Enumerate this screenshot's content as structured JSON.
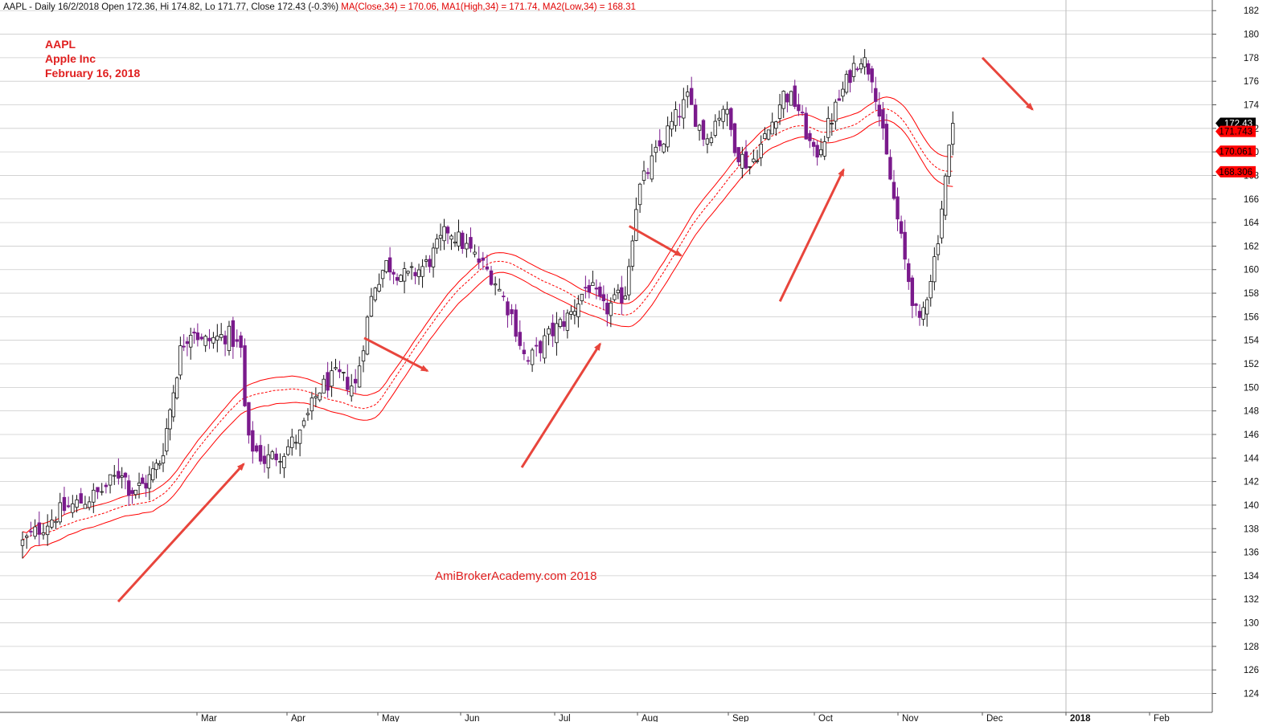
{
  "header": {
    "prefix": "AAPL - Daily 16/2/2018 Open 172.36, Hi 174.82, Lo 171.77, Close 172.43 (-0.3%)",
    "ma1": "MA(Close,34) = 170.06,",
    "ma2": "MA1(High,34) = 171.74,",
    "ma3": "MA2(Low,34) = 168.31"
  },
  "annotation": {
    "ticker": "AAPL",
    "company": "Apple Inc",
    "date": "February 16, 2018",
    "watermark": "AmiBrokerAcademy.com  2018"
  },
  "colors": {
    "up": "#111111",
    "down": "#7a1a8c",
    "ma": "#ff0000",
    "arrow": "#e8453c",
    "grid": "#cccccc"
  },
  "chart_data": {
    "type": "candlestick",
    "ylim": [
      123,
      183
    ],
    "y_ticks": [
      124,
      126,
      128,
      130,
      132,
      134,
      136,
      138,
      140,
      142,
      144,
      146,
      148,
      150,
      152,
      154,
      156,
      158,
      160,
      162,
      164,
      166,
      168,
      170,
      172,
      174,
      176,
      178,
      180,
      182
    ],
    "x_labels": [
      {
        "label": "Mar",
        "month": 2
      },
      {
        "label": "Apr",
        "month": 3
      },
      {
        "label": "May",
        "month": 4
      },
      {
        "label": "Jun",
        "month": 5
      },
      {
        "label": "Jul",
        "month": 6
      },
      {
        "label": "Aug",
        "month": 7
      },
      {
        "label": "Sep",
        "month": 8
      },
      {
        "label": "Oct",
        "month": 9
      },
      {
        "label": "Nov",
        "month": 10
      },
      {
        "label": "Dec",
        "month": 11
      },
      {
        "label": "2018",
        "month": 12,
        "bold": true
      },
      {
        "label": "Feb",
        "month": 13
      }
    ],
    "price_path": [
      [
        0,
        136.8
      ],
      [
        0.4,
        139.5
      ],
      [
        0.8,
        141.0
      ],
      [
        1.05,
        143.0
      ],
      [
        1.15,
        141.2
      ],
      [
        1.35,
        141.8
      ],
      [
        1.55,
        144.0
      ],
      [
        1.8,
        153.5
      ],
      [
        1.95,
        155.2
      ],
      [
        2.05,
        153.8
      ],
      [
        2.35,
        154.5
      ],
      [
        2.5,
        153.0
      ],
      [
        2.55,
        145.5
      ],
      [
        2.75,
        143.8
      ],
      [
        2.95,
        144.5
      ],
      [
        3.15,
        146.0
      ],
      [
        3.35,
        149.8
      ],
      [
        3.55,
        151.0
      ],
      [
        3.75,
        150.0
      ],
      [
        3.95,
        158.5
      ],
      [
        4.1,
        160.5
      ],
      [
        4.35,
        159.3
      ],
      [
        4.6,
        160.5
      ],
      [
        4.85,
        163.5
      ],
      [
        5.05,
        162.0
      ],
      [
        5.35,
        159.3
      ],
      [
        5.55,
        156.0
      ],
      [
        5.7,
        152.0
      ],
      [
        5.95,
        154.5
      ],
      [
        6.2,
        156.3
      ],
      [
        6.4,
        158.8
      ],
      [
        6.6,
        156.5
      ],
      [
        6.85,
        158.0
      ],
      [
        7.0,
        166.5
      ],
      [
        7.15,
        169.0
      ],
      [
        7.35,
        172.0
      ],
      [
        7.55,
        174.5
      ],
      [
        7.75,
        171.0
      ],
      [
        7.95,
        174.0
      ],
      [
        8.1,
        170.0
      ],
      [
        8.25,
        168.8
      ],
      [
        8.45,
        171.5
      ],
      [
        8.65,
        175.0
      ],
      [
        8.8,
        174.0
      ],
      [
        9.0,
        169.5
      ],
      [
        9.1,
        171.0
      ],
      [
        9.3,
        174.5
      ],
      [
        9.45,
        177.0
      ],
      [
        9.55,
        178.2
      ],
      [
        9.7,
        176.5
      ],
      [
        9.85,
        170.0
      ],
      [
        9.95,
        166.0
      ],
      [
        10.1,
        160.0
      ],
      [
        10.25,
        155.0
      ],
      [
        10.45,
        161.5
      ],
      [
        10.55,
        167.0
      ],
      [
        10.65,
        172.43
      ]
    ],
    "series": [
      {
        "name": "MA(Close,34)",
        "last": 170.06,
        "label": "170.061",
        "style": "dashed"
      },
      {
        "name": "MA1(High,34)",
        "last": 171.74,
        "label": "171.743",
        "style": "solid"
      },
      {
        "name": "MA2(Low,34)",
        "last": 168.31,
        "label": "168.306",
        "style": "solid"
      }
    ],
    "last_close": {
      "label": "172.43",
      "value": 172.43
    },
    "arrows": [
      {
        "x1": 1.0,
        "y1": 131.8,
        "x2": 2.52,
        "y2": 143.5
      },
      {
        "x1": 3.85,
        "y1": 154.2,
        "x2": 4.6,
        "y2": 151.4
      },
      {
        "x1": 5.65,
        "y1": 143.2,
        "x2": 6.55,
        "y2": 153.7
      },
      {
        "x1": 6.9,
        "y1": 163.7,
        "x2": 7.48,
        "y2": 161.2
      },
      {
        "x1": 8.6,
        "y1": 157.3,
        "x2": 9.35,
        "y2": 168.5
      },
      {
        "x1": 11.0,
        "y1": 178.0,
        "x2": 11.6,
        "y2": 173.6
      }
    ]
  }
}
